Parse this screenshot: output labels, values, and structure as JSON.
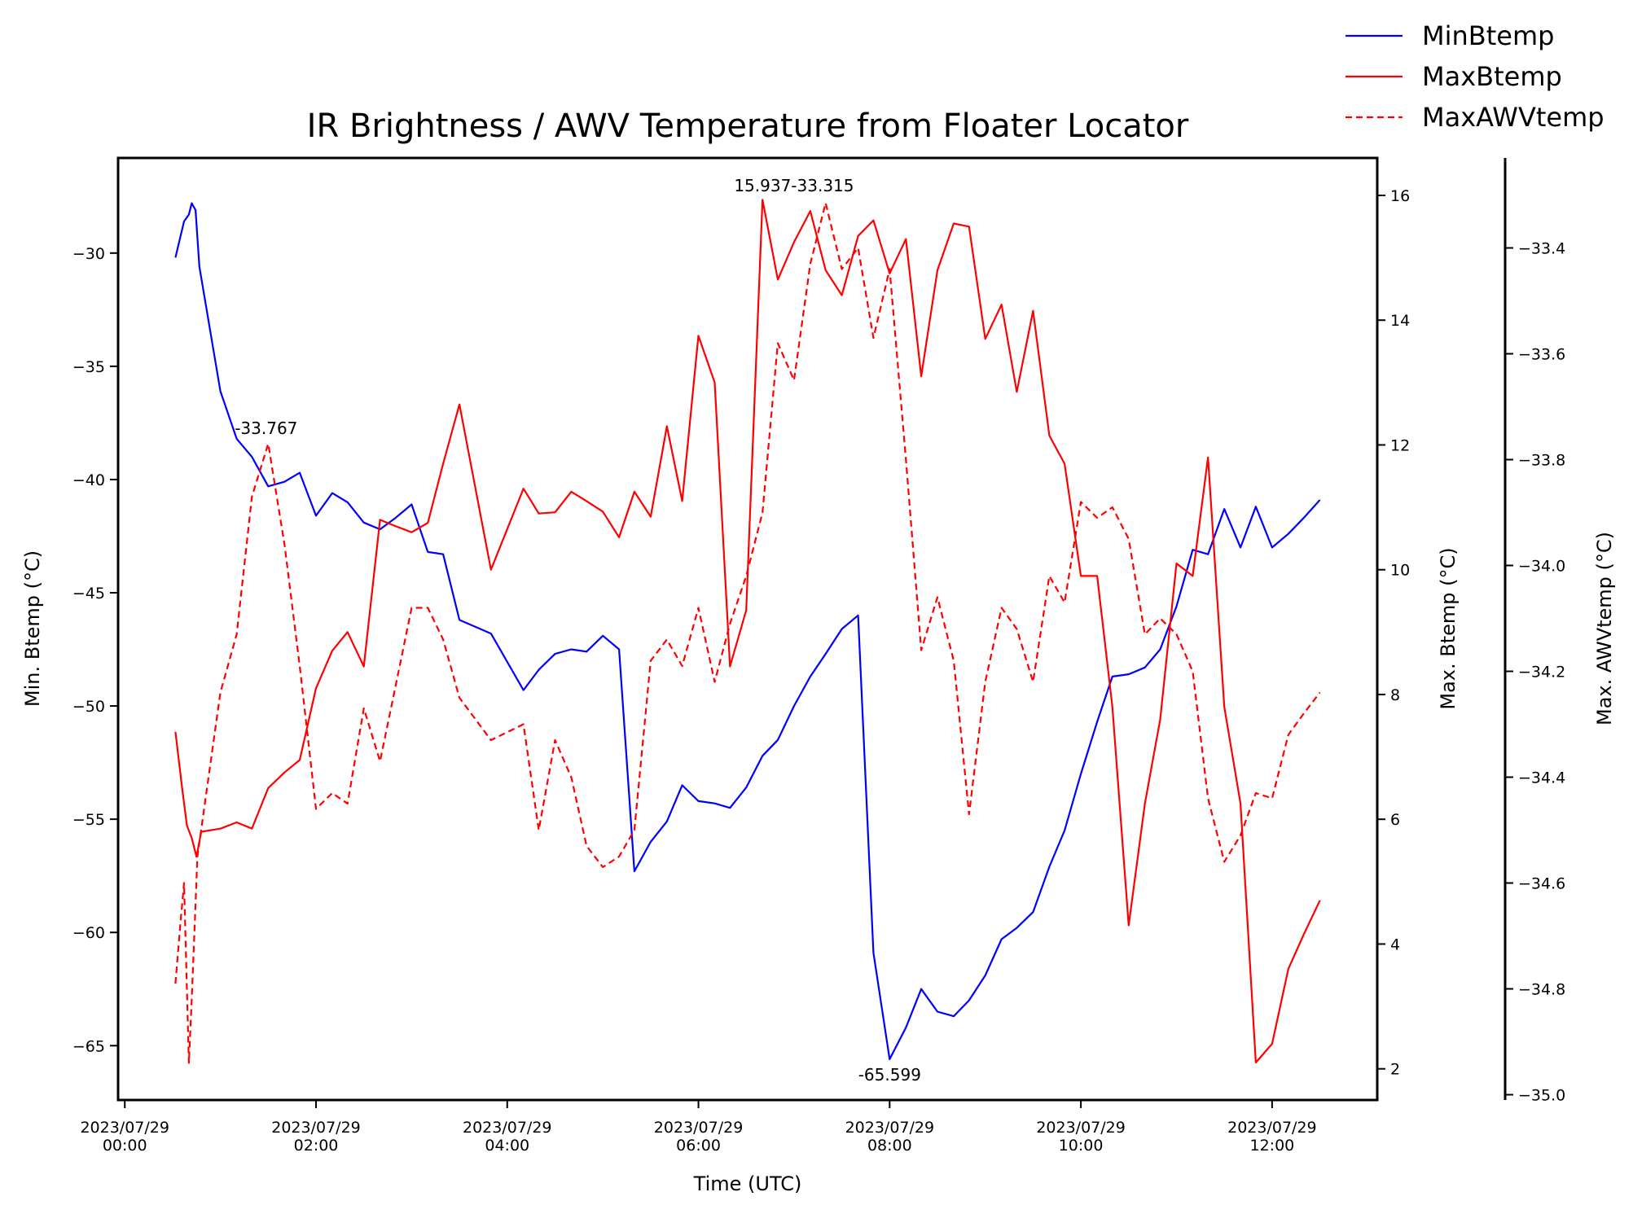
{
  "chart_data": {
    "type": "line",
    "title": "IR Brightness / AWV Temperature from Floater Locator",
    "xlabel": "Time (UTC)",
    "ylabel_left": "Min. Btemp (°C)",
    "ylabel_right": "Max. Btemp (°C)",
    "ylabel_right2": "Max. AWVtemp (°C)",
    "x_unit": "hours since 2023/07/29 00:00 UTC",
    "xlim": [
      -0.07,
      13.1
    ],
    "ylim_left": [
      -67.4,
      -25.8
    ],
    "ylim_right": [
      1.5,
      16.6
    ],
    "ylim_right2": [
      -35.01,
      -33.23
    ],
    "xticks": [
      {
        "x": 0,
        "line1": "2023/07/29",
        "line2": "00:00"
      },
      {
        "x": 2,
        "line1": "2023/07/29",
        "line2": "02:00"
      },
      {
        "x": 4,
        "line1": "2023/07/29",
        "line2": "04:00"
      },
      {
        "x": 6,
        "line1": "2023/07/29",
        "line2": "06:00"
      },
      {
        "x": 8,
        "line1": "2023/07/29",
        "line2": "08:00"
      },
      {
        "x": 10,
        "line1": "2023/07/29",
        "line2": "10:00"
      },
      {
        "x": 12,
        "line1": "2023/07/29",
        "line2": "12:00"
      }
    ],
    "yticks_left": [
      "-30",
      "-35",
      "-40",
      "-45",
      "-50",
      "-55",
      "-60",
      "-65"
    ],
    "yticks_right": [
      "2",
      "4",
      "6",
      "8",
      "10",
      "12",
      "14",
      "16"
    ],
    "yticks_right2": [
      "-35.0",
      "-34.8",
      "-34.6",
      "-34.4",
      "-34.2",
      "-34.0",
      "-33.8",
      "-33.6",
      "-33.4"
    ],
    "legend_placement": "top-right, outside axes",
    "grid": false,
    "series": [
      {
        "name": "MinBtemp",
        "axis": "left",
        "color": "#0000ff",
        "dash": "solid",
        "points": [
          [
            0.53,
            -30.2
          ],
          [
            0.62,
            -28.6
          ],
          [
            0.67,
            -28.3
          ],
          [
            0.7,
            -27.8
          ],
          [
            0.74,
            -28.1
          ],
          [
            0.78,
            -30.6
          ],
          [
            1.0,
            -36.1
          ],
          [
            1.17,
            -38.2
          ],
          [
            1.33,
            -39.0
          ],
          [
            1.5,
            -40.3
          ],
          [
            1.67,
            -40.1
          ],
          [
            1.83,
            -39.7
          ],
          [
            2.0,
            -41.6
          ],
          [
            2.17,
            -40.6
          ],
          [
            2.33,
            -41.0
          ],
          [
            2.5,
            -41.9
          ],
          [
            2.67,
            -42.2
          ],
          [
            2.83,
            -41.7
          ],
          [
            3.0,
            -41.1
          ],
          [
            3.17,
            -43.2
          ],
          [
            3.33,
            -43.3
          ],
          [
            3.5,
            -46.2
          ],
          [
            3.83,
            -46.8
          ],
          [
            4.17,
            -49.3
          ],
          [
            4.33,
            -48.4
          ],
          [
            4.5,
            -47.7
          ],
          [
            4.67,
            -47.5
          ],
          [
            4.83,
            -47.6
          ],
          [
            5.0,
            -46.9
          ],
          [
            5.17,
            -47.5
          ],
          [
            5.33,
            -57.3
          ],
          [
            5.5,
            -56.0
          ],
          [
            5.67,
            -55.1
          ],
          [
            5.83,
            -53.5
          ],
          [
            6.0,
            -54.2
          ],
          [
            6.17,
            -54.3
          ],
          [
            6.33,
            -54.5
          ],
          [
            6.5,
            -53.6
          ],
          [
            6.67,
            -52.2
          ],
          [
            6.83,
            -51.5
          ],
          [
            7.0,
            -50.0
          ],
          [
            7.17,
            -48.7
          ],
          [
            7.33,
            -47.7
          ],
          [
            7.5,
            -46.6
          ],
          [
            7.67,
            -46.0
          ],
          [
            7.83,
            -60.9
          ],
          [
            8.0,
            -65.6
          ],
          [
            8.17,
            -64.2
          ],
          [
            8.33,
            -62.5
          ],
          [
            8.5,
            -63.5
          ],
          [
            8.67,
            -63.7
          ],
          [
            8.83,
            -63.0
          ],
          [
            9.0,
            -61.9
          ],
          [
            9.17,
            -60.3
          ],
          [
            9.33,
            -59.8
          ],
          [
            9.5,
            -59.1
          ],
          [
            9.67,
            -57.1
          ],
          [
            9.83,
            -55.5
          ],
          [
            10.0,
            -53.0
          ],
          [
            10.17,
            -50.7
          ],
          [
            10.33,
            -48.7
          ],
          [
            10.5,
            -48.6
          ],
          [
            10.67,
            -48.3
          ],
          [
            10.83,
            -47.5
          ],
          [
            11.0,
            -45.6
          ],
          [
            11.17,
            -43.1
          ],
          [
            11.33,
            -43.3
          ],
          [
            11.5,
            -41.3
          ],
          [
            11.67,
            -43.0
          ],
          [
            11.83,
            -41.2
          ],
          [
            12.0,
            -43.0
          ],
          [
            12.17,
            -42.4
          ],
          [
            12.33,
            -41.7
          ],
          [
            12.5,
            -40.9
          ]
        ]
      },
      {
        "name": "MaxBtemp",
        "axis": "right",
        "color": "#ff0000",
        "dash": "solid",
        "points": [
          [
            0.53,
            7.4
          ],
          [
            0.6,
            6.5
          ],
          [
            0.65,
            5.9
          ],
          [
            0.7,
            5.7
          ],
          [
            0.75,
            5.4
          ],
          [
            0.8,
            5.8
          ],
          [
            1.0,
            5.85
          ],
          [
            1.17,
            5.95
          ],
          [
            1.33,
            5.85
          ],
          [
            1.5,
            6.5
          ],
          [
            1.67,
            6.75
          ],
          [
            1.83,
            6.95
          ],
          [
            2.0,
            8.1
          ],
          [
            2.17,
            8.7
          ],
          [
            2.33,
            9.0
          ],
          [
            2.5,
            8.45
          ],
          [
            2.67,
            10.8
          ],
          [
            2.83,
            10.7
          ],
          [
            3.0,
            10.6
          ],
          [
            3.17,
            10.75
          ],
          [
            3.33,
            11.7
          ],
          [
            3.5,
            12.65
          ],
          [
            3.83,
            10.0
          ],
          [
            4.17,
            11.3
          ],
          [
            4.33,
            10.9
          ],
          [
            4.5,
            10.92
          ],
          [
            4.67,
            11.25
          ],
          [
            4.83,
            11.1
          ],
          [
            5.0,
            10.93
          ],
          [
            5.17,
            10.52
          ],
          [
            5.33,
            11.25
          ],
          [
            5.5,
            10.85
          ],
          [
            5.67,
            12.3
          ],
          [
            5.83,
            11.1
          ],
          [
            6.0,
            13.75
          ],
          [
            6.17,
            13.0
          ],
          [
            6.33,
            8.45
          ],
          [
            6.5,
            9.35
          ],
          [
            6.67,
            15.93
          ],
          [
            6.83,
            14.65
          ],
          [
            7.0,
            15.25
          ],
          [
            7.17,
            15.75
          ],
          [
            7.33,
            14.8
          ],
          [
            7.5,
            14.4
          ],
          [
            7.67,
            15.35
          ],
          [
            7.83,
            15.6
          ],
          [
            8.0,
            14.75
          ],
          [
            8.17,
            15.3
          ],
          [
            8.33,
            13.1
          ],
          [
            8.5,
            14.8
          ],
          [
            8.67,
            15.55
          ],
          [
            8.83,
            15.5
          ],
          [
            9.0,
            13.7
          ],
          [
            9.17,
            14.25
          ],
          [
            9.33,
            12.85
          ],
          [
            9.5,
            14.15
          ],
          [
            9.67,
            12.15
          ],
          [
            9.83,
            11.7
          ],
          [
            10.0,
            9.9
          ],
          [
            10.17,
            9.9
          ],
          [
            10.33,
            7.8
          ],
          [
            10.5,
            4.3
          ],
          [
            10.67,
            6.25
          ],
          [
            10.83,
            7.6
          ],
          [
            11.0,
            10.1
          ],
          [
            11.17,
            9.9
          ],
          [
            11.33,
            11.8
          ],
          [
            11.5,
            7.8
          ],
          [
            11.67,
            6.25
          ],
          [
            11.83,
            2.1
          ],
          [
            12.0,
            2.4
          ],
          [
            12.17,
            3.6
          ],
          [
            12.33,
            4.15
          ],
          [
            12.5,
            4.7
          ]
        ]
      },
      {
        "name": "MaxAWVtemp",
        "axis": "right2",
        "color": "#ff0000",
        "dash": "dashed",
        "points": [
          [
            0.53,
            -34.79
          ],
          [
            0.58,
            -34.68
          ],
          [
            0.62,
            -34.6
          ],
          [
            0.67,
            -34.94
          ],
          [
            0.7,
            -34.82
          ],
          [
            0.76,
            -34.55
          ],
          [
            1.0,
            -34.24
          ],
          [
            1.17,
            -34.13
          ],
          [
            1.33,
            -33.87
          ],
          [
            1.5,
            -33.77
          ],
          [
            1.67,
            -33.96
          ],
          [
            1.83,
            -34.19
          ],
          [
            2.0,
            -34.46
          ],
          [
            2.17,
            -34.43
          ],
          [
            2.33,
            -34.45
          ],
          [
            2.5,
            -34.27
          ],
          [
            2.67,
            -34.37
          ],
          [
            2.83,
            -34.23
          ],
          [
            3.0,
            -34.08
          ],
          [
            3.17,
            -34.08
          ],
          [
            3.33,
            -34.14
          ],
          [
            3.5,
            -34.25
          ],
          [
            3.83,
            -34.33
          ],
          [
            4.17,
            -34.3
          ],
          [
            4.33,
            -34.5
          ],
          [
            4.5,
            -34.33
          ],
          [
            4.67,
            -34.4
          ],
          [
            4.83,
            -34.53
          ],
          [
            5.0,
            -34.57
          ],
          [
            5.17,
            -34.55
          ],
          [
            5.33,
            -34.5
          ],
          [
            5.5,
            -34.18
          ],
          [
            5.67,
            -34.14
          ],
          [
            5.83,
            -34.19
          ],
          [
            6.0,
            -34.08
          ],
          [
            6.17,
            -34.22
          ],
          [
            6.33,
            -34.11
          ],
          [
            6.5,
            -34.02
          ],
          [
            6.67,
            -33.9
          ],
          [
            6.83,
            -33.58
          ],
          [
            7.0,
            -33.65
          ],
          [
            7.17,
            -33.43
          ],
          [
            7.33,
            -33.315
          ],
          [
            7.5,
            -33.44
          ],
          [
            7.67,
            -33.4
          ],
          [
            7.83,
            -33.57
          ],
          [
            8.0,
            -33.44
          ],
          [
            8.17,
            -33.8
          ],
          [
            8.33,
            -34.16
          ],
          [
            8.5,
            -34.06
          ],
          [
            8.67,
            -34.18
          ],
          [
            8.83,
            -34.47
          ],
          [
            9.0,
            -34.22
          ],
          [
            9.17,
            -34.08
          ],
          [
            9.33,
            -34.12
          ],
          [
            9.5,
            -34.22
          ],
          [
            9.67,
            -34.02
          ],
          [
            9.83,
            -34.07
          ],
          [
            10.0,
            -33.88
          ],
          [
            10.17,
            -33.91
          ],
          [
            10.33,
            -33.89
          ],
          [
            10.5,
            -33.95
          ],
          [
            10.67,
            -34.13
          ],
          [
            10.83,
            -34.1
          ],
          [
            11.0,
            -34.13
          ],
          [
            11.17,
            -34.2
          ],
          [
            11.33,
            -34.44
          ],
          [
            11.5,
            -34.56
          ],
          [
            11.67,
            -34.51
          ],
          [
            11.83,
            -34.43
          ],
          [
            12.0,
            -34.44
          ],
          [
            12.17,
            -34.32
          ],
          [
            12.33,
            -34.28
          ],
          [
            12.5,
            -34.24
          ]
        ]
      }
    ],
    "annotations": [
      {
        "text": "-33.767",
        "x": 1.5,
        "axis": "right2",
        "y": -33.767,
        "anchor": "start",
        "dx": -0.35
      },
      {
        "text": "15.937-33.315",
        "x": 6.65,
        "axis": "right",
        "y": 15.937,
        "anchor": "middle",
        "dx": 0.35
      },
      {
        "text": "-65.599",
        "x": 8.0,
        "axis": "left",
        "y": -65.599,
        "anchor": "middle",
        "dx": 0
      }
    ]
  }
}
